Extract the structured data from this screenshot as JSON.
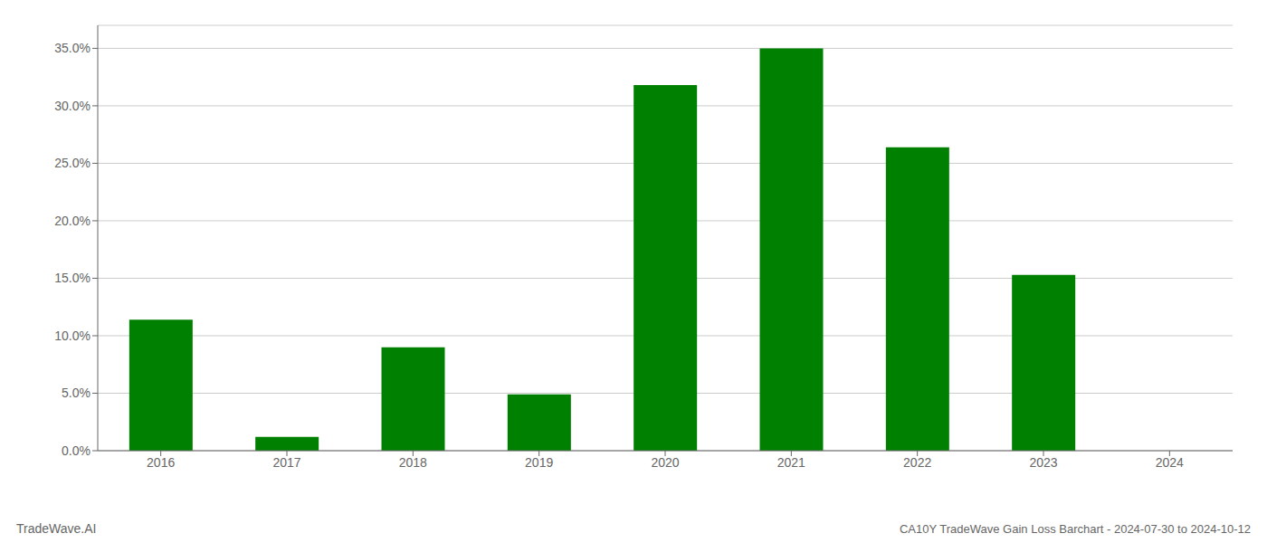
{
  "chart_data": {
    "type": "bar",
    "title": "CA10Y TradeWave Gain Loss Barchart - 2024-07-30 to 2024-10-12",
    "annotations": [
      "TradeWave.AI"
    ],
    "categories": [
      "2016",
      "2017",
      "2018",
      "2019",
      "2020",
      "2021",
      "2022",
      "2023",
      "2024"
    ],
    "values": [
      0.114,
      0.012,
      0.09,
      0.049,
      0.318,
      0.35,
      0.264,
      0.153,
      0.0
    ],
    "color": "#008000",
    "ylim": [
      0,
      0.37
    ],
    "yticks": [
      {
        "value": 0,
        "label": "0.0%"
      },
      {
        "value": 0.05,
        "label": "5.0%"
      },
      {
        "value": 0.1,
        "label": "10.0%"
      },
      {
        "value": 0.15,
        "label": "15.0%"
      },
      {
        "value": 0.2,
        "label": "20.0%"
      },
      {
        "value": 0.25,
        "label": "25.0%"
      },
      {
        "value": 0.3,
        "label": "30.0%"
      },
      {
        "value": 0.35,
        "label": "35.0%"
      }
    ],
    "grid": true
  }
}
